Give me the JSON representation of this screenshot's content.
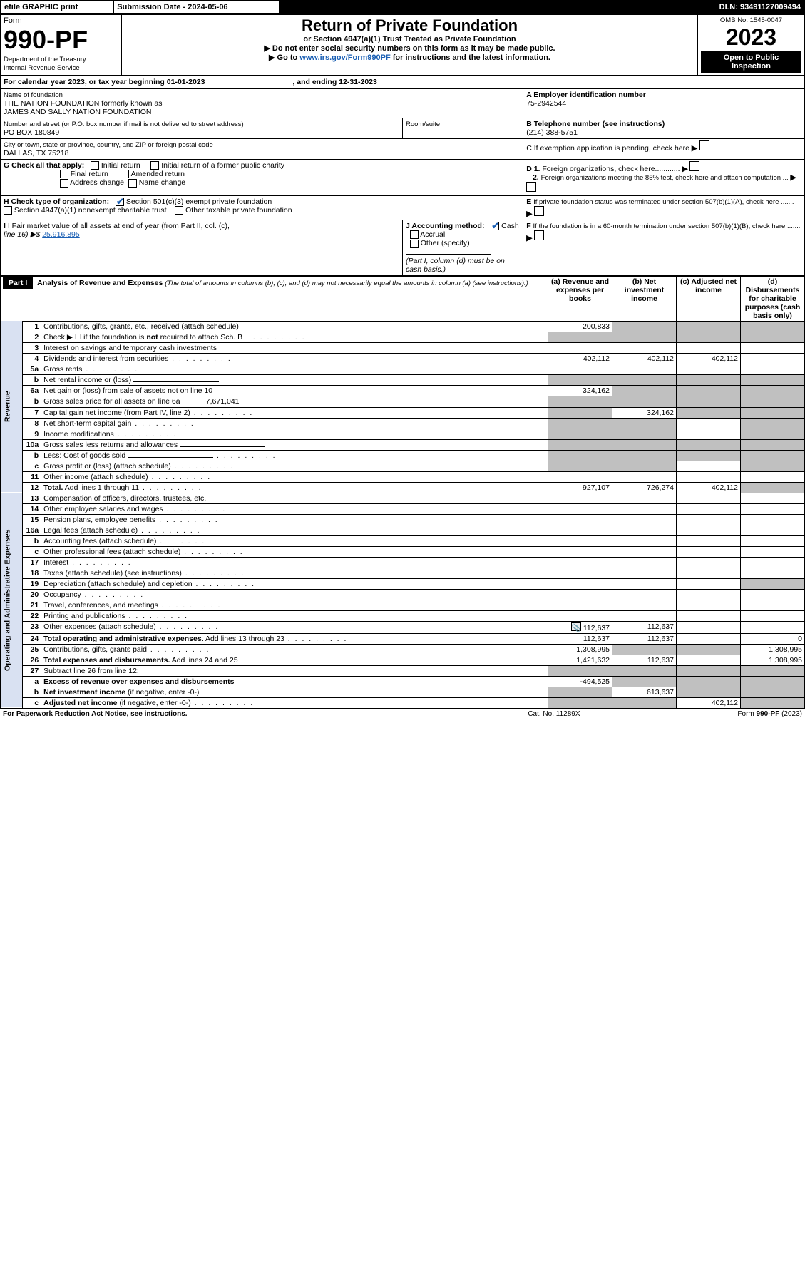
{
  "topbar": {
    "efile": "efile GRAPHIC print",
    "sub_label": "Submission Date - 2024-05-06",
    "dln": "DLN: 93491127009494"
  },
  "header": {
    "form_label": "Form",
    "form_no": "990-PF",
    "dept": "Department of the Treasury",
    "irs": "Internal Revenue Service",
    "title": "Return of Private Foundation",
    "subtitle": "or Section 4947(a)(1) Trust Treated as Private Foundation",
    "warn1": "▶ Do not enter social security numbers on this form as it may be made public.",
    "warn2_pre": "▶ Go to ",
    "warn2_link": "www.irs.gov/Form990PF",
    "warn2_post": " for instructions and the latest information.",
    "omb": "OMB No. 1545-0047",
    "year": "2023",
    "open": "Open to Public Inspection"
  },
  "cal": {
    "text_pre": "For calendar year 2023, or tax year beginning ",
    "begin": "01-01-2023",
    "mid": " , and ending ",
    "end": "12-31-2023"
  },
  "info": {
    "name_label": "Name of foundation",
    "name1": "THE NATION FOUNDATION formerly known as",
    "name2": "JAMES AND SALLY NATION FOUNDATION",
    "addr_label": "Number and street (or P.O. box number if mail is not delivered to street address)",
    "addr": "PO BOX 180849",
    "room_label": "Room/suite",
    "city_label": "City or town, state or province, country, and ZIP or foreign postal code",
    "city": "DALLAS, TX  75218",
    "A_label": "A Employer identification number",
    "A_val": "75-2942544",
    "B_label": "B Telephone number (see instructions)",
    "B_val": "(214) 388-5751",
    "C_label": "C If exemption application is pending, check here",
    "G_label": "G Check all that apply:",
    "G_opts": [
      "Initial return",
      "Final return",
      "Address change",
      "Initial return of a former public charity",
      "Amended return",
      "Name change"
    ],
    "H_label": "H Check type of organization:",
    "H1": "Section 501(c)(3) exempt private foundation",
    "H2": "Section 4947(a)(1) nonexempt charitable trust",
    "H3": "Other taxable private foundation",
    "I_label": "I Fair market value of all assets at end of year (from Part II, col. (c),",
    "I_line": "line 16) ▶$ ",
    "I_val": "25,916,895",
    "J_label": "J Accounting method:",
    "J1": "Cash",
    "J2": "Accrual",
    "J_other": "Other (specify)",
    "J_note": "(Part I, column (d) must be on cash basis.)",
    "D1": "D 1. Foreign organizations, check here............",
    "D2": "2. Foreign organizations meeting the 85% test, check here and attach computation ...",
    "E": "E  If private foundation status was terminated under section 507(b)(1)(A), check here .......",
    "F": "F  If the foundation is in a 60-month termination under section 507(b)(1)(B), check here .......",
    "arrow": "▶"
  },
  "part1": {
    "part": "Part I",
    "title": "Analysis of Revenue and Expenses",
    "title_note": "(The total of amounts in columns (b), (c), and (d) may not necessarily equal the amounts in column (a) (see instructions).)",
    "col_a": "(a)   Revenue and expenses per books",
    "col_b": "(b)    Net investment income",
    "col_c": "(c)   Adjusted net income",
    "col_d": "(d)   Disbursements for charitable purposes (cash basis only)"
  },
  "vlab": {
    "rev": "Revenue",
    "exp": "Operating and Administrative Expenses"
  },
  "rows": [
    {
      "n": "1",
      "t": "Contributions, gifts, grants, etc., received (attach schedule)",
      "a": "200,833",
      "gb": true,
      "gc": true,
      "gd": true
    },
    {
      "n": "2",
      "t": "Check ▶ ☐ if the foundation is <b>not</b> required to attach Sch. B",
      "dots": true,
      "ga": true,
      "gb": true,
      "gc": true,
      "gd": true
    },
    {
      "n": "3",
      "t": "Interest on savings and temporary cash investments"
    },
    {
      "n": "4",
      "t": "Dividends and interest from securities",
      "dots": true,
      "a": "402,112",
      "b": "402,112",
      "c": "402,112"
    },
    {
      "n": "5a",
      "t": "Gross rents",
      "dots": true
    },
    {
      "n": "b",
      "t": "Net rental income or (loss)",
      "uline": true,
      "ga": true,
      "gb": true,
      "gc": true,
      "gd": true
    },
    {
      "n": "6a",
      "t": "Net gain or (loss) from sale of assets not on line 10",
      "a": "324,162",
      "gb": true,
      "gc": true,
      "gd": true
    },
    {
      "n": "b",
      "t": "Gross sales price for all assets on line 6a",
      "uval": "7,671,041",
      "ga": true,
      "gb": true,
      "gc": true,
      "gd": true
    },
    {
      "n": "7",
      "t": "Capital gain net income (from Part IV, line 2)",
      "dots": true,
      "ga": true,
      "b": "324,162",
      "gc": true,
      "gd": true
    },
    {
      "n": "8",
      "t": "Net short-term capital gain",
      "dots": true,
      "ga": true,
      "gb": true,
      "gd": true
    },
    {
      "n": "9",
      "t": "Income modifications",
      "dots": true,
      "ga": true,
      "gb": true,
      "gd": true
    },
    {
      "n": "10a",
      "t": "Gross sales less returns and allowances",
      "uline": true,
      "ga": true,
      "gb": true,
      "gc": true,
      "gd": true
    },
    {
      "n": "b",
      "t": "Less: Cost of goods sold",
      "dots": true,
      "uline": true,
      "ga": true,
      "gb": true,
      "gc": true,
      "gd": true
    },
    {
      "n": "c",
      "t": "Gross profit or (loss) (attach schedule)",
      "dots": true,
      "ga": true,
      "gb": true,
      "gd": true
    },
    {
      "n": "11",
      "t": "Other income (attach schedule)",
      "dots": true
    },
    {
      "n": "12",
      "t": "<b>Total.</b> Add lines 1 through 11",
      "dots": true,
      "a": "927,107",
      "b": "726,274",
      "c": "402,112",
      "gd": true
    },
    {
      "n": "13",
      "t": "Compensation of officers, directors, trustees, etc."
    },
    {
      "n": "14",
      "t": "Other employee salaries and wages",
      "dots": true
    },
    {
      "n": "15",
      "t": "Pension plans, employee benefits",
      "dots": true
    },
    {
      "n": "16a",
      "t": "Legal fees (attach schedule)",
      "dots": true
    },
    {
      "n": "b",
      "t": "Accounting fees (attach schedule)",
      "dots": true
    },
    {
      "n": "c",
      "t": "Other professional fees (attach schedule)",
      "dots": true
    },
    {
      "n": "17",
      "t": "Interest",
      "dots": true
    },
    {
      "n": "18",
      "t": "Taxes (attach schedule) (see instructions)",
      "dots": true
    },
    {
      "n": "19",
      "t": "Depreciation (attach schedule) and depletion",
      "dots": true,
      "gd": true
    },
    {
      "n": "20",
      "t": "Occupancy",
      "dots": true
    },
    {
      "n": "21",
      "t": "Travel, conferences, and meetings",
      "dots": true
    },
    {
      "n": "22",
      "t": "Printing and publications",
      "dots": true
    },
    {
      "n": "23",
      "t": "Other expenses (attach schedule)",
      "dots": true,
      "sch": true,
      "a": "112,637",
      "b": "112,637"
    },
    {
      "n": "24",
      "t": "<b>Total operating and administrative expenses.</b> Add lines 13 through 23",
      "dots": true,
      "a": "112,637",
      "b": "112,637",
      "d": "0"
    },
    {
      "n": "25",
      "t": "Contributions, gifts, grants paid",
      "dots": true,
      "a": "1,308,995",
      "gb": true,
      "gc": true,
      "d": "1,308,995"
    },
    {
      "n": "26",
      "t": "<b>Total expenses and disbursements.</b> Add lines 24 and 25",
      "a": "1,421,632",
      "b": "112,637",
      "d": "1,308,995"
    },
    {
      "n": "27",
      "t": "Subtract line 26 from line 12:",
      "ga": true,
      "gb": true,
      "gc": true,
      "gd": true
    },
    {
      "n": "a",
      "t": "<b>Excess of revenue over expenses and disbursements</b>",
      "a": "-494,525",
      "gb": true,
      "gc": true,
      "gd": true
    },
    {
      "n": "b",
      "t": "<b>Net investment income</b> (if negative, enter -0-)",
      "ga": true,
      "b": "613,637",
      "gc": true,
      "gd": true
    },
    {
      "n": "c",
      "t": "<b>Adjusted net income</b> (if negative, enter -0-)",
      "dots": true,
      "ga": true,
      "gb": true,
      "c": "402,112",
      "gd": true
    }
  ],
  "footer": {
    "pra": "For Paperwork Reduction Act Notice, see instructions.",
    "cat": "Cat. No. 11289X",
    "form": "Form 990-PF (2023)"
  }
}
